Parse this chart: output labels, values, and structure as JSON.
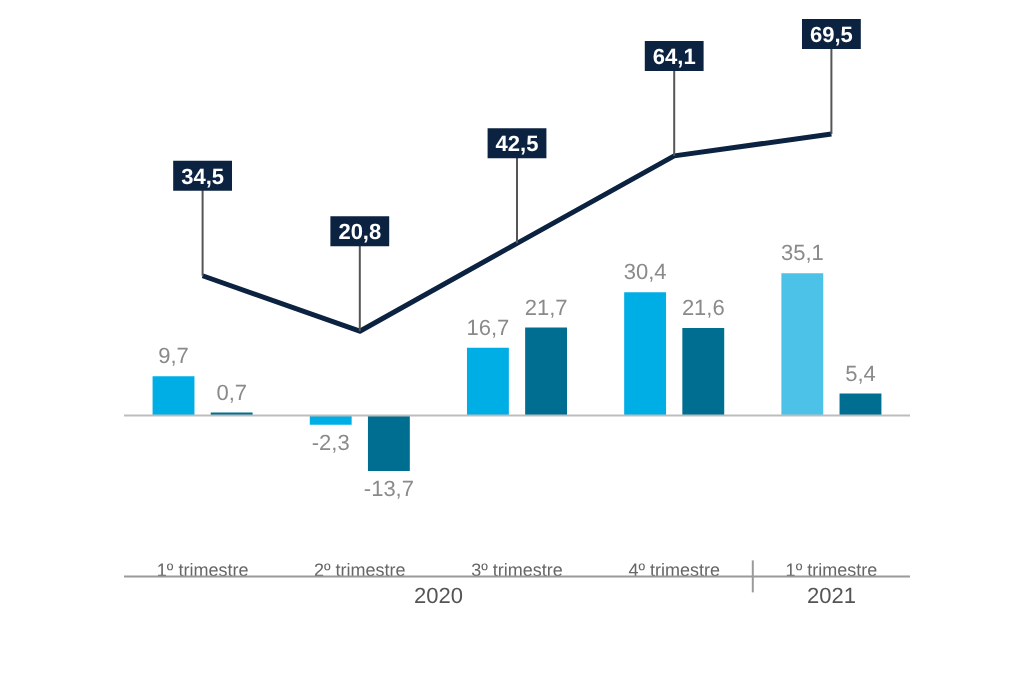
{
  "chart_data": {
    "type": "bar",
    "categories": [
      "1º trimestre",
      "2º trimestre",
      "3º trimestre",
      "4º trimestre",
      "1º trimestre"
    ],
    "series": [
      {
        "colors": [
          "#00aee6",
          "#00aee6",
          "#00aee6",
          "#00aee6",
          "#4cc2e8"
        ],
        "values": [
          9.7,
          -2.3,
          16.7,
          30.4,
          35.1
        ],
        "value_labels": [
          "9,7",
          "-2,3",
          "16,7",
          "30,4",
          "35,1"
        ]
      },
      {
        "color": "#006e91",
        "values": [
          0.7,
          -13.7,
          21.7,
          21.6,
          5.4
        ],
        "value_labels": [
          "0,7",
          "-13,7",
          "21,7",
          "21,6",
          "5,4"
        ]
      },
      {
        "type": "line",
        "color": "#0b2341",
        "values": [
          34.5,
          20.8,
          42.5,
          64.1,
          69.5
        ],
        "value_labels": [
          "34,5",
          "20,8",
          "42,5",
          "64,1",
          "69,5"
        ]
      }
    ],
    "annotations": [
      "2020",
      "2021"
    ],
    "grid": false,
    "legend": false,
    "marker": "none",
    "line_style": "solid"
  }
}
